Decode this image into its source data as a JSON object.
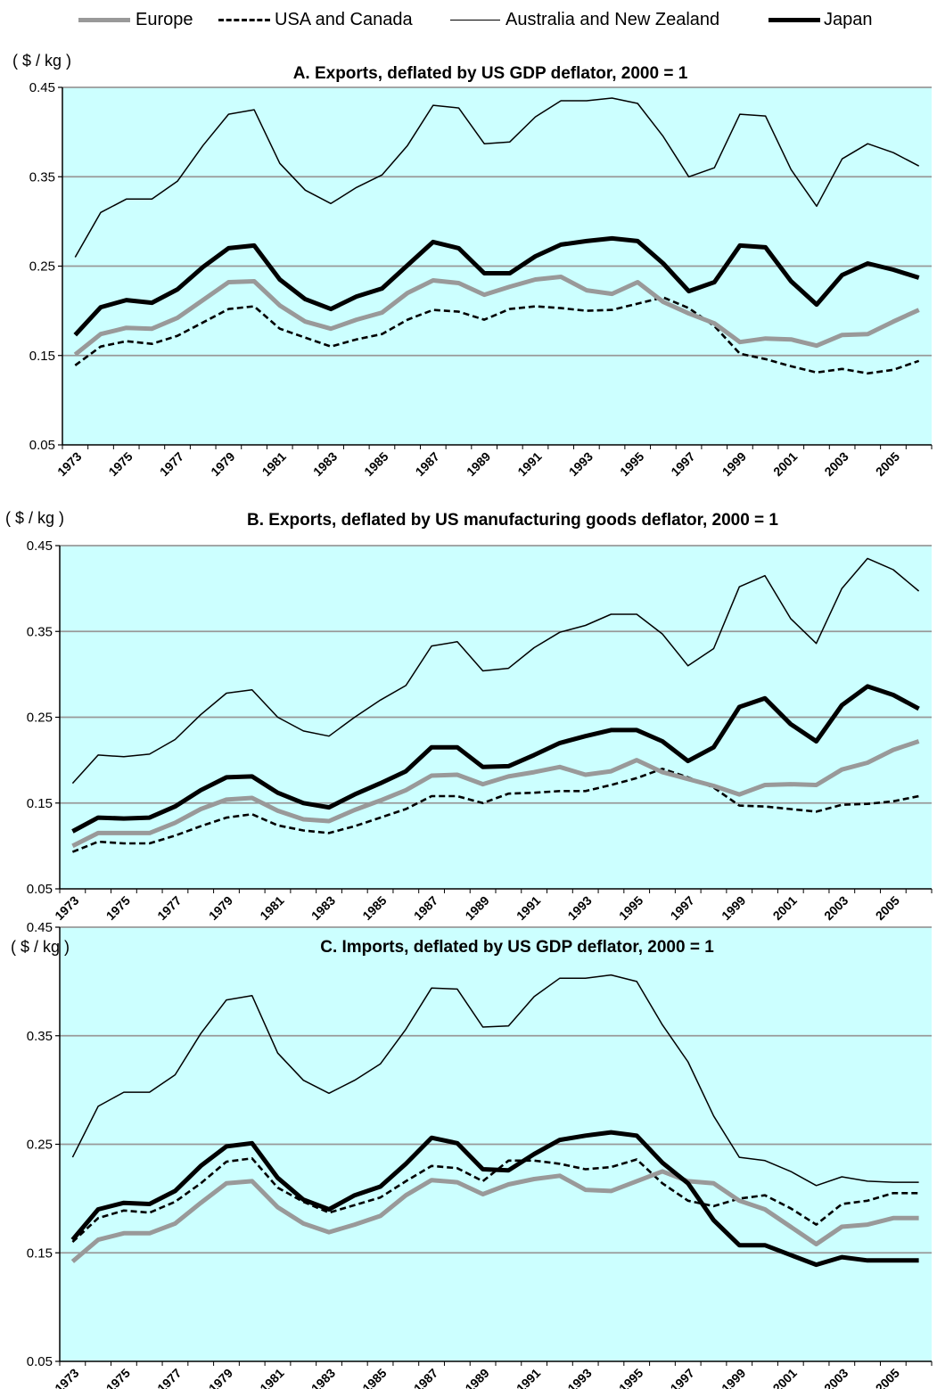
{
  "legend": [
    {
      "label": "Europe",
      "color": "#999999",
      "style": "thick-gray"
    },
    {
      "label": "USA and Canada",
      "color": "#000000",
      "style": "dashed"
    },
    {
      "label": "Australia and New Zealand",
      "color": "#000000",
      "style": "thin"
    },
    {
      "label": "Japan",
      "color": "#000000",
      "style": "thick-black"
    }
  ],
  "colors": {
    "plot_background": "#ccffff",
    "gridline": "#999999",
    "europe": "#999999",
    "dark": "#000000"
  },
  "chart_data": [
    {
      "type": "line",
      "title": "A. Exports, deflated by US GDP deflator, 2000 = 1",
      "unit_label": "( $ / kg )",
      "ylim": [
        0.05,
        0.45
      ],
      "yticks": [
        "0.05",
        "0.15",
        "0.25",
        "0.35",
        "0.45"
      ],
      "x": [
        1973,
        1974,
        1975,
        1976,
        1977,
        1978,
        1979,
        1980,
        1981,
        1982,
        1983,
        1984,
        1985,
        1986,
        1987,
        1988,
        1989,
        1990,
        1991,
        1992,
        1993,
        1994,
        1995,
        1996,
        1997,
        1998,
        1999,
        2000,
        2001,
        2002,
        2003,
        2004,
        2005,
        2006
      ],
      "xticks": [
        "1973",
        "1975",
        "1977",
        "1979",
        "1981",
        "1983",
        "1985",
        "1987",
        "1989",
        "1991",
        "1993",
        "1995",
        "1997",
        "1999",
        "2001",
        "2003",
        "2005"
      ],
      "grid": "horizontal",
      "series": [
        {
          "name": "Europe",
          "values": [
            0.151,
            0.174,
            0.181,
            0.18,
            0.192,
            0.212,
            0.232,
            0.233,
            0.206,
            0.188,
            0.18,
            0.19,
            0.198,
            0.22,
            0.234,
            0.231,
            0.218,
            0.227,
            0.235,
            0.238,
            0.223,
            0.219,
            0.232,
            0.21,
            0.197,
            0.186,
            0.165,
            0.169,
            0.168,
            0.161,
            0.173,
            0.174,
            0.188,
            0.201
          ]
        },
        {
          "name": "USA and Canada",
          "values": [
            0.139,
            0.16,
            0.166,
            0.163,
            0.172,
            0.187,
            0.202,
            0.205,
            0.18,
            0.17,
            0.16,
            0.168,
            0.174,
            0.19,
            0.201,
            0.199,
            0.19,
            0.202,
            0.205,
            0.203,
            0.2,
            0.201,
            0.208,
            0.215,
            0.203,
            0.183,
            0.152,
            0.146,
            0.138,
            0.131,
            0.135,
            0.13,
            0.134,
            0.144
          ]
        },
        {
          "name": "Australia and New Zealand",
          "values": [
            0.26,
            0.31,
            0.325,
            0.325,
            0.345,
            0.385,
            0.42,
            0.425,
            0.365,
            0.335,
            0.32,
            0.338,
            0.352,
            0.385,
            0.43,
            0.427,
            0.387,
            0.389,
            0.417,
            0.435,
            0.435,
            0.438,
            0.432,
            0.395,
            0.35,
            0.36,
            0.42,
            0.418,
            0.358,
            0.317,
            0.37,
            0.387,
            0.377,
            0.362
          ]
        },
        {
          "name": "Japan",
          "values": [
            0.173,
            0.204,
            0.212,
            0.209,
            0.224,
            0.249,
            0.27,
            0.273,
            0.235,
            0.213,
            0.202,
            0.216,
            0.225,
            0.251,
            0.277,
            0.27,
            0.242,
            0.242,
            0.261,
            0.274,
            0.278,
            0.281,
            0.278,
            0.253,
            0.222,
            0.232,
            0.273,
            0.271,
            0.233,
            0.207,
            0.24,
            0.253,
            0.246,
            0.237
          ]
        }
      ]
    },
    {
      "type": "line",
      "title": "B. Exports, deflated by US manufacturing goods deflator, 2000 = 1",
      "unit_label": "( $ / kg )",
      "ylim": [
        0.05,
        0.45
      ],
      "yticks": [
        "0.05",
        "0.15",
        "0.25",
        "0.35",
        "0.45"
      ],
      "x": [
        1973,
        1974,
        1975,
        1976,
        1977,
        1978,
        1979,
        1980,
        1981,
        1982,
        1983,
        1984,
        1985,
        1986,
        1987,
        1988,
        1989,
        1990,
        1991,
        1992,
        1993,
        1994,
        1995,
        1996,
        1997,
        1998,
        1999,
        2000,
        2001,
        2002,
        2003,
        2004,
        2005,
        2006
      ],
      "xticks": [
        "1973",
        "1975",
        "1977",
        "1979",
        "1981",
        "1983",
        "1985",
        "1987",
        "1989",
        "1991",
        "1993",
        "1995",
        "1997",
        "1999",
        "2001",
        "2003",
        "2005"
      ],
      "grid": "horizontal",
      "series": [
        {
          "name": "Europe",
          "values": [
            0.1,
            0.115,
            0.115,
            0.115,
            0.127,
            0.143,
            0.154,
            0.156,
            0.141,
            0.131,
            0.129,
            0.142,
            0.153,
            0.165,
            0.182,
            0.183,
            0.172,
            0.181,
            0.186,
            0.192,
            0.183,
            0.187,
            0.2,
            0.186,
            0.178,
            0.17,
            0.16,
            0.171,
            0.172,
            0.171,
            0.189,
            0.197,
            0.212,
            0.222
          ]
        },
        {
          "name": "USA and Canada",
          "values": [
            0.093,
            0.105,
            0.103,
            0.103,
            0.112,
            0.123,
            0.133,
            0.137,
            0.124,
            0.118,
            0.115,
            0.123,
            0.133,
            0.143,
            0.158,
            0.158,
            0.15,
            0.161,
            0.162,
            0.164,
            0.164,
            0.171,
            0.179,
            0.19,
            0.18,
            0.168,
            0.147,
            0.146,
            0.143,
            0.14,
            0.148,
            0.149,
            0.152,
            0.158
          ]
        },
        {
          "name": "Australia and New Zealand",
          "values": [
            0.173,
            0.206,
            0.204,
            0.207,
            0.224,
            0.253,
            0.278,
            0.282,
            0.25,
            0.234,
            0.228,
            0.25,
            0.27,
            0.287,
            0.333,
            0.338,
            0.304,
            0.307,
            0.331,
            0.349,
            0.357,
            0.37,
            0.37,
            0.347,
            0.31,
            0.33,
            0.402,
            0.415,
            0.365,
            0.336,
            0.4,
            0.435,
            0.422,
            0.397
          ]
        },
        {
          "name": "Japan",
          "values": [
            0.117,
            0.133,
            0.132,
            0.133,
            0.146,
            0.165,
            0.18,
            0.181,
            0.162,
            0.15,
            0.145,
            0.16,
            0.173,
            0.187,
            0.215,
            0.215,
            0.192,
            0.193,
            0.206,
            0.22,
            0.228,
            0.235,
            0.235,
            0.222,
            0.199,
            0.215,
            0.262,
            0.272,
            0.242,
            0.222,
            0.264,
            0.286,
            0.276,
            0.26
          ]
        }
      ]
    },
    {
      "type": "line",
      "title": "C. Imports, deflated by US GDP deflator, 2000 = 1",
      "unit_label": "( $ / kg )",
      "ylim": [
        0.05,
        0.45
      ],
      "yticks": [
        "0.05",
        "0.15",
        "0.25",
        "0.35",
        "0.45"
      ],
      "x": [
        1973,
        1974,
        1975,
        1976,
        1977,
        1978,
        1979,
        1980,
        1981,
        1982,
        1983,
        1984,
        1985,
        1986,
        1987,
        1988,
        1989,
        1990,
        1991,
        1992,
        1993,
        1994,
        1995,
        1996,
        1997,
        1998,
        1999,
        2000,
        2001,
        2002,
        2003,
        2004,
        2005,
        2006
      ],
      "xticks": [
        "1973",
        "1975",
        "1977",
        "1979",
        "1981",
        "1983",
        "1985",
        "1987",
        "1989",
        "1991",
        "1993",
        "1995",
        "1997",
        "1999",
        "2001",
        "2003",
        "2005"
      ],
      "grid": "horizontal",
      "series": [
        {
          "name": "Europe",
          "values": [
            0.142,
            0.162,
            0.168,
            0.168,
            0.177,
            0.196,
            0.214,
            0.216,
            0.192,
            0.177,
            0.169,
            0.176,
            0.184,
            0.203,
            0.217,
            0.215,
            0.204,
            0.213,
            0.218,
            0.221,
            0.208,
            0.207,
            0.216,
            0.225,
            0.216,
            0.214,
            0.198,
            0.19,
            0.174,
            0.158,
            0.174,
            0.176,
            0.182,
            0.182
          ]
        },
        {
          "name": "USA and Canada",
          "values": [
            0.16,
            0.182,
            0.189,
            0.187,
            0.197,
            0.214,
            0.234,
            0.237,
            0.21,
            0.197,
            0.187,
            0.194,
            0.201,
            0.216,
            0.23,
            0.228,
            0.216,
            0.235,
            0.235,
            0.232,
            0.227,
            0.229,
            0.236,
            0.214,
            0.198,
            0.193,
            0.2,
            0.203,
            0.191,
            0.176,
            0.195,
            0.198,
            0.205,
            0.205
          ]
        },
        {
          "name": "Australia and New Zealand",
          "values": [
            0.238,
            0.285,
            0.298,
            0.298,
            0.314,
            0.352,
            0.383,
            0.387,
            0.334,
            0.309,
            0.297,
            0.309,
            0.324,
            0.356,
            0.394,
            0.393,
            0.358,
            0.359,
            0.386,
            0.403,
            0.403,
            0.406,
            0.4,
            0.36,
            0.326,
            0.276,
            0.238,
            0.235,
            0.225,
            0.212,
            0.22,
            0.216,
            0.215,
            0.215
          ]
        },
        {
          "name": "Japan",
          "values": [
            0.162,
            0.19,
            0.196,
            0.195,
            0.207,
            0.23,
            0.248,
            0.251,
            0.219,
            0.199,
            0.19,
            0.203,
            0.211,
            0.232,
            0.256,
            0.251,
            0.227,
            0.226,
            0.241,
            0.254,
            0.258,
            0.261,
            0.258,
            0.233,
            0.214,
            0.18,
            0.157,
            0.157,
            0.148,
            0.139,
            0.146,
            0.143,
            0.143,
            0.143
          ]
        }
      ]
    }
  ]
}
